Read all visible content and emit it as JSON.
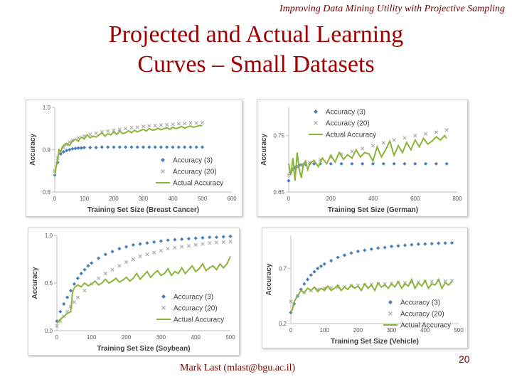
{
  "slide": {
    "header": "Improving Data Mining Utility with Projective Sampling",
    "title_line1": "Projected and Actual Learning",
    "title_line2": "Curves – Small Datasets",
    "author": "Mark Last (mlast@bgu.ac.il)",
    "page_number": "20"
  },
  "colors": {
    "accuracy3": "#4a7ebb",
    "accuracy20": "#a6a6a6",
    "actual": "#8db438",
    "title": "#a00000"
  },
  "chart_data": [
    {
      "type": "line",
      "id": "breast-cancer",
      "xlabel": "Training Set Size (Breast Cancer)",
      "ylabel": "Accuracy",
      "xlim": [
        0,
        600
      ],
      "ylim": [
        0.8,
        1.0
      ],
      "xticks": [
        0,
        100,
        200,
        300,
        400,
        500,
        600
      ],
      "yticks": [
        {
          "v": 0.8,
          "label": "0.8"
        },
        {
          "v": 0.9,
          "label": "0.9"
        },
        {
          "v": 1.0,
          "label": "1.0"
        }
      ],
      "legend": [
        "Accuracy (3)",
        "Accuracy (20)",
        "Actual Accuracy"
      ],
      "legend_position": "bottom-right",
      "series": [
        {
          "name": "Accuracy (3)",
          "x": [
            0,
            10,
            20,
            30,
            40,
            50,
            60,
            70,
            80,
            90,
            100,
            120,
            140,
            160,
            180,
            200,
            220,
            240,
            260,
            280,
            300,
            320,
            340,
            360,
            380,
            400,
            420,
            440,
            460,
            480,
            500
          ],
          "values": [
            0.84,
            0.87,
            0.89,
            0.895,
            0.898,
            0.9,
            0.902,
            0.903,
            0.904,
            0.904,
            0.905,
            0.905,
            0.905,
            0.906,
            0.906,
            0.906,
            0.906,
            0.906,
            0.906,
            0.906,
            0.906,
            0.906,
            0.906,
            0.906,
            0.906,
            0.906,
            0.906,
            0.906,
            0.906,
            0.906,
            0.906
          ]
        },
        {
          "name": "Accuracy (20)",
          "x": [
            0,
            10,
            20,
            30,
            40,
            50,
            60,
            80,
            100,
            120,
            140,
            160,
            180,
            200,
            220,
            240,
            260,
            280,
            300,
            320,
            340,
            360,
            380,
            400,
            420,
            440,
            460,
            480,
            500
          ],
          "values": [
            0.85,
            0.88,
            0.895,
            0.905,
            0.912,
            0.918,
            0.922,
            0.928,
            0.932,
            0.936,
            0.939,
            0.942,
            0.944,
            0.946,
            0.948,
            0.95,
            0.952,
            0.953,
            0.955,
            0.956,
            0.957,
            0.958,
            0.959,
            0.96,
            0.961,
            0.962,
            0.963,
            0.963,
            0.964
          ]
        },
        {
          "name": "Actual Accuracy",
          "x": [
            0,
            5,
            10,
            15,
            20,
            25,
            30,
            40,
            50,
            60,
            70,
            80,
            90,
            100,
            110,
            120,
            130,
            140,
            150,
            160,
            170,
            180,
            190,
            200,
            210,
            220,
            230,
            240,
            250,
            260,
            270,
            280,
            290,
            300,
            310,
            320,
            330,
            340,
            350,
            360,
            370,
            380,
            390,
            400,
            410,
            420,
            430,
            440,
            450,
            460,
            470,
            480,
            490,
            500
          ],
          "values": [
            0.84,
            0.86,
            0.88,
            0.9,
            0.895,
            0.905,
            0.91,
            0.915,
            0.91,
            0.92,
            0.925,
            0.92,
            0.93,
            0.925,
            0.935,
            0.928,
            0.932,
            0.93,
            0.935,
            0.94,
            0.932,
            0.938,
            0.935,
            0.942,
            0.936,
            0.944,
            0.938,
            0.94,
            0.945,
            0.94,
            0.946,
            0.942,
            0.945,
            0.948,
            0.944,
            0.95,
            0.946,
            0.947,
            0.951,
            0.947,
            0.95,
            0.952,
            0.948,
            0.953,
            0.95,
            0.952,
            0.955,
            0.951,
            0.954,
            0.956,
            0.953,
            0.955,
            0.957,
            0.957
          ]
        }
      ]
    },
    {
      "type": "line",
      "id": "german",
      "xlabel": "Training Set Size (German)",
      "ylabel": "Accuracy",
      "xlim": [
        0,
        800
      ],
      "ylim": [
        0.65,
        0.8
      ],
      "xticks": [
        0,
        200,
        400,
        600,
        800
      ],
      "yticks": [
        {
          "v": 0.65,
          "label": "0.65"
        },
        {
          "v": 0.75,
          "label": "0.75"
        }
      ],
      "legend": [
        "Accuracy (3)",
        "Accuracy (20)",
        "Actual Accuracy"
      ],
      "legend_position": "top-right",
      "series": [
        {
          "name": "Accuracy (3)",
          "x": [
            0,
            10,
            20,
            30,
            40,
            50,
            60,
            80,
            100,
            120,
            150,
            200,
            250,
            300,
            350,
            400,
            450,
            500,
            550,
            600,
            650,
            700,
            750
          ],
          "values": [
            0.67,
            0.685,
            0.69,
            0.693,
            0.695,
            0.697,
            0.698,
            0.699,
            0.7,
            0.7,
            0.7,
            0.7,
            0.7,
            0.7,
            0.7,
            0.7,
            0.7,
            0.7,
            0.7,
            0.7,
            0.7,
            0.7,
            0.7
          ]
        },
        {
          "name": "Accuracy (20)",
          "x": [
            0,
            20,
            40,
            60,
            80,
            100,
            150,
            200,
            250,
            300,
            350,
            400,
            450,
            500,
            550,
            600,
            650,
            700,
            750
          ],
          "values": [
            0.68,
            0.69,
            0.695,
            0.698,
            0.7,
            0.702,
            0.707,
            0.712,
            0.717,
            0.722,
            0.727,
            0.732,
            0.737,
            0.742,
            0.746,
            0.75,
            0.753,
            0.756,
            0.76
          ]
        },
        {
          "name": "Actual Accuracy",
          "x": [
            0,
            10,
            20,
            30,
            40,
            50,
            60,
            70,
            80,
            90,
            100,
            120,
            140,
            160,
            180,
            200,
            220,
            240,
            260,
            280,
            300,
            320,
            340,
            360,
            380,
            400,
            420,
            440,
            460,
            480,
            500,
            520,
            540,
            560,
            580,
            600,
            620,
            640,
            660,
            680,
            700,
            720,
            740,
            750
          ],
          "values": [
            0.7,
            0.68,
            0.71,
            0.67,
            0.72,
            0.69,
            0.675,
            0.7,
            0.705,
            0.69,
            0.7,
            0.706,
            0.695,
            0.71,
            0.7,
            0.715,
            0.703,
            0.72,
            0.708,
            0.716,
            0.71,
            0.725,
            0.712,
            0.72,
            0.718,
            0.705,
            0.73,
            0.712,
            0.725,
            0.74,
            0.715,
            0.732,
            0.72,
            0.738,
            0.725,
            0.742,
            0.73,
            0.745,
            0.735,
            0.74,
            0.748,
            0.742,
            0.75,
            0.745
          ]
        }
      ]
    },
    {
      "type": "line",
      "id": "soybean",
      "xlabel": "Training Set Size (Soybean)",
      "ylabel": "Accuracy",
      "xlim": [
        0,
        500
      ],
      "ylim": [
        0.0,
        1.0
      ],
      "xticks": [
        0,
        100,
        200,
        300,
        400,
        500
      ],
      "yticks": [
        {
          "v": 0.0,
          "label": "0.0"
        },
        {
          "v": 0.5,
          "label": "0.5"
        },
        {
          "v": 1.0,
          "label": "1.0"
        }
      ],
      "legend": [
        "Accuracy (3)",
        "Accuracy (20)",
        "Actual Accuracy"
      ],
      "legend_position": "bottom-right",
      "series": [
        {
          "name": "Accuracy (3)",
          "x": [
            0,
            10,
            20,
            30,
            40,
            50,
            60,
            70,
            80,
            90,
            100,
            120,
            140,
            160,
            180,
            200,
            220,
            240,
            260,
            280,
            300,
            320,
            340,
            360,
            380,
            400,
            420,
            440,
            460,
            480,
            500
          ],
          "values": [
            0.1,
            0.2,
            0.28,
            0.35,
            0.42,
            0.49,
            0.55,
            0.6,
            0.64,
            0.68,
            0.71,
            0.76,
            0.8,
            0.83,
            0.86,
            0.88,
            0.9,
            0.91,
            0.92,
            0.93,
            0.94,
            0.95,
            0.955,
            0.96,
            0.965,
            0.97,
            0.975,
            0.98,
            0.98,
            0.985,
            0.99
          ]
        },
        {
          "name": "Accuracy (20)",
          "x": [
            0,
            10,
            20,
            30,
            40,
            50,
            60,
            80,
            100,
            120,
            140,
            160,
            180,
            200,
            220,
            240,
            260,
            280,
            300,
            320,
            340,
            360,
            380,
            400,
            420,
            440,
            460,
            480,
            500
          ],
          "values": [
            0.05,
            0.1,
            0.15,
            0.2,
            0.25,
            0.3,
            0.35,
            0.42,
            0.49,
            0.55,
            0.6,
            0.64,
            0.68,
            0.72,
            0.75,
            0.78,
            0.8,
            0.82,
            0.84,
            0.86,
            0.87,
            0.88,
            0.89,
            0.9,
            0.91,
            0.92,
            0.925,
            0.93,
            0.935
          ]
        },
        {
          "name": "Actual Accuracy",
          "x": [
            0,
            10,
            20,
            30,
            40,
            45,
            50,
            60,
            70,
            80,
            90,
            100,
            110,
            120,
            130,
            140,
            150,
            160,
            170,
            180,
            190,
            200,
            210,
            220,
            230,
            240,
            250,
            260,
            270,
            280,
            290,
            300,
            310,
            320,
            330,
            340,
            350,
            360,
            370,
            380,
            390,
            400,
            410,
            420,
            430,
            440,
            450,
            460,
            470,
            480,
            490,
            500
          ],
          "values": [
            0.08,
            0.12,
            0.15,
            0.18,
            0.2,
            0.4,
            0.45,
            0.48,
            0.46,
            0.5,
            0.47,
            0.49,
            0.52,
            0.48,
            0.5,
            0.54,
            0.5,
            0.52,
            0.55,
            0.51,
            0.53,
            0.56,
            0.52,
            0.55,
            0.6,
            0.54,
            0.58,
            0.62,
            0.56,
            0.6,
            0.63,
            0.58,
            0.6,
            0.65,
            0.58,
            0.62,
            0.6,
            0.66,
            0.6,
            0.64,
            0.68,
            0.62,
            0.65,
            0.7,
            0.63,
            0.66,
            0.68,
            0.64,
            0.7,
            0.66,
            0.7,
            0.78
          ]
        }
      ]
    },
    {
      "type": "line",
      "id": "vehicle",
      "xlabel": "Training Set Size (Vehicle)",
      "ylabel": "Accuracy",
      "xlim": [
        0,
        500
      ],
      "ylim": [
        0.2,
        1.0
      ],
      "xticks": [
        0,
        100,
        200,
        300,
        400,
        500
      ],
      "yticks": [
        {
          "v": 0.2,
          "label": "0.2"
        },
        {
          "v": 0.7,
          "label": "0.7"
        }
      ],
      "legend": [
        "Accuracy (3)",
        "Accuracy (20)",
        "Actual Accuracy"
      ],
      "legend_position": "bottom-right",
      "series": [
        {
          "name": "Accuracy (3)",
          "x": [
            0,
            10,
            20,
            30,
            40,
            50,
            60,
            70,
            80,
            90,
            100,
            120,
            140,
            160,
            180,
            200,
            220,
            240,
            260,
            280,
            300,
            320,
            340,
            360,
            380,
            400,
            420,
            440,
            460,
            480
          ],
          "values": [
            0.3,
            0.38,
            0.45,
            0.51,
            0.56,
            0.6,
            0.64,
            0.67,
            0.7,
            0.72,
            0.74,
            0.77,
            0.8,
            0.82,
            0.84,
            0.855,
            0.865,
            0.875,
            0.885,
            0.89,
            0.9,
            0.905,
            0.91,
            0.915,
            0.92,
            0.922,
            0.925,
            0.928,
            0.93,
            0.932
          ]
        },
        {
          "name": "Accuracy (20)",
          "x": [
            0,
            20,
            40,
            60,
            80,
            100,
            120,
            140,
            160,
            180,
            200,
            220,
            240,
            260,
            280,
            300,
            320,
            340,
            360,
            380,
            400,
            420,
            440,
            460,
            480
          ],
          "values": [
            0.4,
            0.45,
            0.48,
            0.5,
            0.51,
            0.52,
            0.525,
            0.53,
            0.535,
            0.54,
            0.545,
            0.55,
            0.555,
            0.56,
            0.56,
            0.565,
            0.57,
            0.57,
            0.575,
            0.575,
            0.58,
            0.58,
            0.585,
            0.585,
            0.59
          ]
        },
        {
          "name": "Actual Accuracy",
          "x": [
            0,
            5,
            10,
            20,
            30,
            40,
            50,
            60,
            70,
            80,
            90,
            100,
            110,
            120,
            130,
            140,
            150,
            160,
            170,
            180,
            190,
            200,
            210,
            220,
            230,
            240,
            250,
            260,
            270,
            280,
            290,
            300,
            310,
            320,
            330,
            340,
            350,
            360,
            370,
            380,
            390,
            400,
            410,
            420,
            430,
            440,
            450,
            460,
            470,
            480
          ],
          "values": [
            0.3,
            0.33,
            0.4,
            0.45,
            0.5,
            0.48,
            0.52,
            0.5,
            0.53,
            0.49,
            0.52,
            0.5,
            0.54,
            0.5,
            0.52,
            0.55,
            0.5,
            0.53,
            0.51,
            0.55,
            0.52,
            0.54,
            0.5,
            0.56,
            0.52,
            0.55,
            0.5,
            0.57,
            0.53,
            0.55,
            0.52,
            0.56,
            0.53,
            0.58,
            0.52,
            0.56,
            0.54,
            0.6,
            0.52,
            0.57,
            0.54,
            0.59,
            0.52,
            0.56,
            0.55,
            0.6,
            0.52,
            0.57,
            0.55,
            0.58
          ]
        }
      ]
    }
  ]
}
